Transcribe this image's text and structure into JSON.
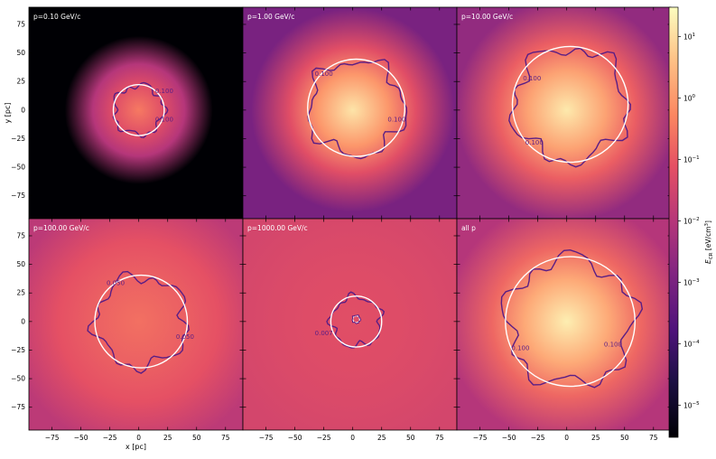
{
  "colors": {
    "panel_bg_low": "#0c0826",
    "panel_bg_mid": "#6a2a7f",
    "panel_bg_high": "#c24d7c",
    "center_glow": "#fdd8a0",
    "white_contour": "#ffffff",
    "purple_contour": "#5a1e85"
  },
  "chart_data": {
    "type": "heatmap",
    "colormap": "magma",
    "xlabel": "x [pc]",
    "ylabel": "y [pc]",
    "xlim": [
      -95,
      90
    ],
    "ylim": [
      -95,
      90
    ],
    "x_ticks": [
      -75,
      -50,
      -25,
      0,
      25,
      50,
      75
    ],
    "y_ticks": [
      -75,
      -50,
      -25,
      0,
      25,
      50,
      75
    ],
    "tick_labels_x": [
      "−75",
      "−50",
      "−25",
      "0",
      "25",
      "50",
      "75"
    ],
    "tick_labels_y": [
      "−75",
      "−50",
      "−25",
      "0",
      "25",
      "50",
      "75"
    ],
    "colorbar": {
      "label": "E_CR [eV/cm³]",
      "label_main": "E",
      "label_sub": "CR",
      "label_unit": " [eV/cm",
      "label_sup": "3",
      "label_end": "]",
      "scale": "log",
      "range": [
        3e-06,
        30
      ],
      "ticks": [
        {
          "value": 10,
          "base": "10",
          "exp": "1"
        },
        {
          "value": 1,
          "base": "10",
          "exp": "0"
        },
        {
          "value": 0.1,
          "base": "10",
          "exp": "−1"
        },
        {
          "value": 0.01,
          "base": "10",
          "exp": "−2"
        },
        {
          "value": 0.001,
          "base": "10",
          "exp": "−3"
        },
        {
          "value": 0.0001,
          "base": "10",
          "exp": "−4"
        },
        {
          "value": 1e-05,
          "base": "10",
          "exp": "−5"
        }
      ]
    },
    "panels": [
      {
        "title": "p=0.10 GeV/c",
        "bg": 0.0,
        "center_level": 0.72,
        "halo_radius": 40,
        "halo_level": 0.5,
        "circle": {
          "cx": 0,
          "cy": 0,
          "r": 22
        },
        "contour_labels": [
          "0.100",
          "0.100"
        ],
        "contour_label_pos": [
          [
            22,
            15
          ],
          [
            22,
            -10
          ]
        ]
      },
      {
        "title": "p=1.00 GeV/c",
        "bg": 0.36,
        "center_level": 0.95,
        "halo_radius": 55,
        "halo_level": 0.62,
        "circle": {
          "cx": 3,
          "cy": 2,
          "r": 42
        },
        "contour_labels": [
          "0.100",
          "0.100"
        ],
        "contour_label_pos": [
          [
            -25,
            30
          ],
          [
            38,
            -10
          ]
        ]
      },
      {
        "title": "p=10.00 GeV/c",
        "bg": 0.42,
        "center_level": 0.96,
        "halo_radius": 60,
        "halo_level": 0.66,
        "circle": {
          "cx": 3,
          "cy": 5,
          "r": 50
        },
        "contour_labels": [
          "0.100",
          "0.100"
        ],
        "contour_label_pos": [
          [
            -30,
            26
          ],
          [
            -28,
            -30
          ]
        ]
      },
      {
        "title": "p=100.00 GeV/c",
        "bg": 0.52,
        "center_level": 0.7,
        "halo_radius": 70,
        "halo_level": 0.63,
        "circle": {
          "cx": 2,
          "cy": 0,
          "r": 40
        },
        "contour_labels": [
          "0.050",
          "0.050"
        ],
        "contour_label_pos": [
          [
            -20,
            32
          ],
          [
            40,
            -15
          ]
        ]
      },
      {
        "title": "p=1000.00 GeV/c",
        "bg": 0.58,
        "center_level": 0.62,
        "halo_radius": 70,
        "halo_level": 0.6,
        "circle": {
          "cx": 3,
          "cy": 0,
          "r": 22
        },
        "contour_labels": [
          "0.007"
        ],
        "contour_label_pos": [
          [
            -25,
            -12
          ]
        ]
      },
      {
        "title": "all p",
        "bg": 0.5,
        "center_level": 0.97,
        "halo_radius": 65,
        "halo_level": 0.68,
        "circle": {
          "cx": 3,
          "cy": 0,
          "r": 56
        },
        "contour_labels": [
          "0.100",
          "0.100"
        ],
        "contour_label_pos": [
          [
            -40,
            -25
          ],
          [
            40,
            -22
          ]
        ]
      }
    ]
  }
}
